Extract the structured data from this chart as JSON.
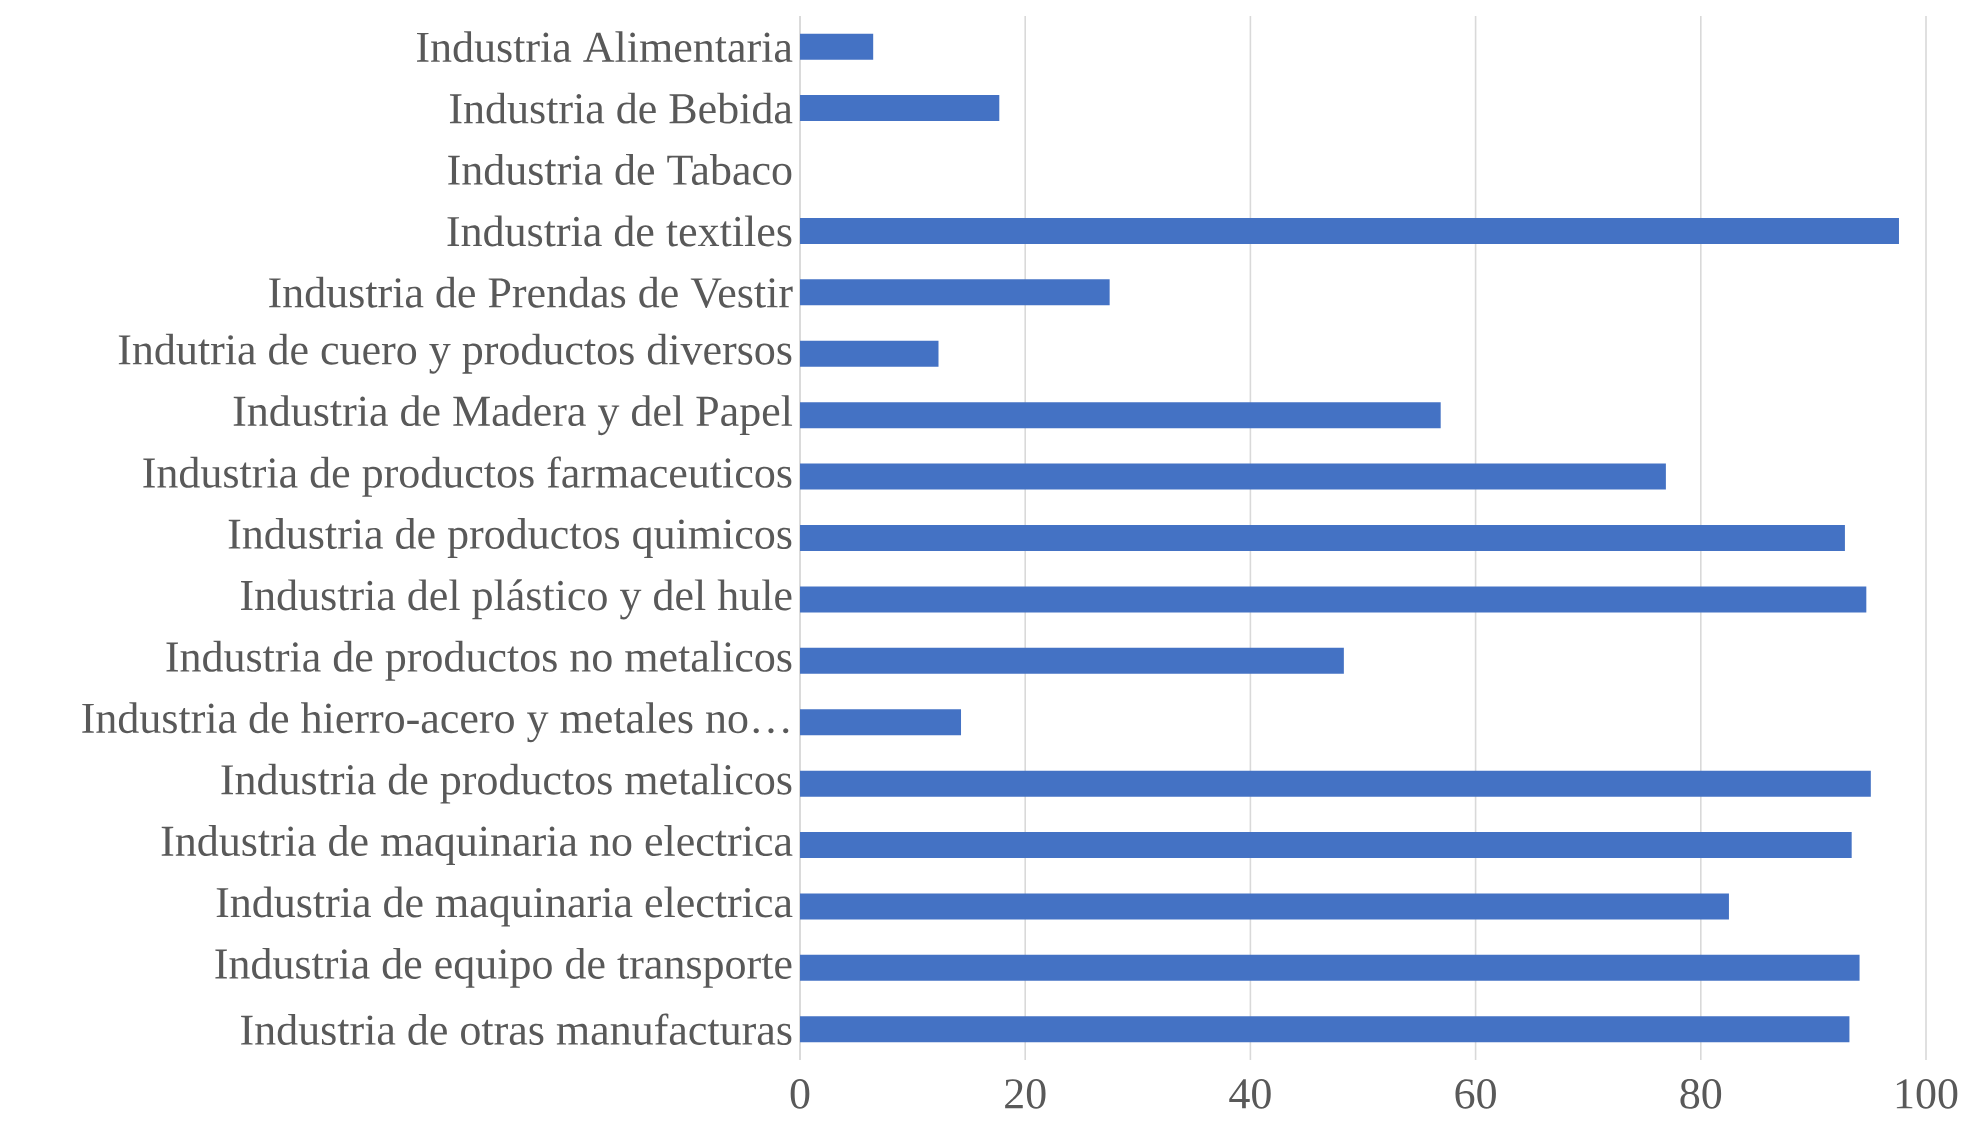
{
  "chart_data": {
    "type": "bar",
    "orientation": "horizontal",
    "categories": [
      "Industria Alimentaria",
      "Industria de Bebida",
      "Industria de Tabaco",
      "Industria de textiles",
      "Industria de Prendas de Vestir",
      "Indutria de cuero y productos diversos",
      "Industria de Madera y del Papel",
      "Industria de productos farmaceuticos",
      "Industria de productos quimicos",
      "Industria del plástico y del hule",
      "Industria de productos no metalicos",
      "Industria de hierro-acero y metales no…",
      "Industria de productos metalicos",
      "Industria de maquinaria no electrica",
      "Industria de maquinaria electrica",
      "Industria de equipo de transporte",
      "Industria de otras manufacturas"
    ],
    "values": [
      6.5,
      17.7,
      0,
      97.6,
      27.5,
      12.3,
      56.9,
      76.9,
      92.8,
      94.7,
      48.3,
      14.3,
      95.1,
      93.4,
      82.5,
      94.1,
      93.2
    ],
    "color": "#4472c4",
    "xlim": [
      0,
      100
    ],
    "xticks": [
      0,
      20,
      40,
      60,
      80,
      100
    ],
    "grid": "x"
  }
}
